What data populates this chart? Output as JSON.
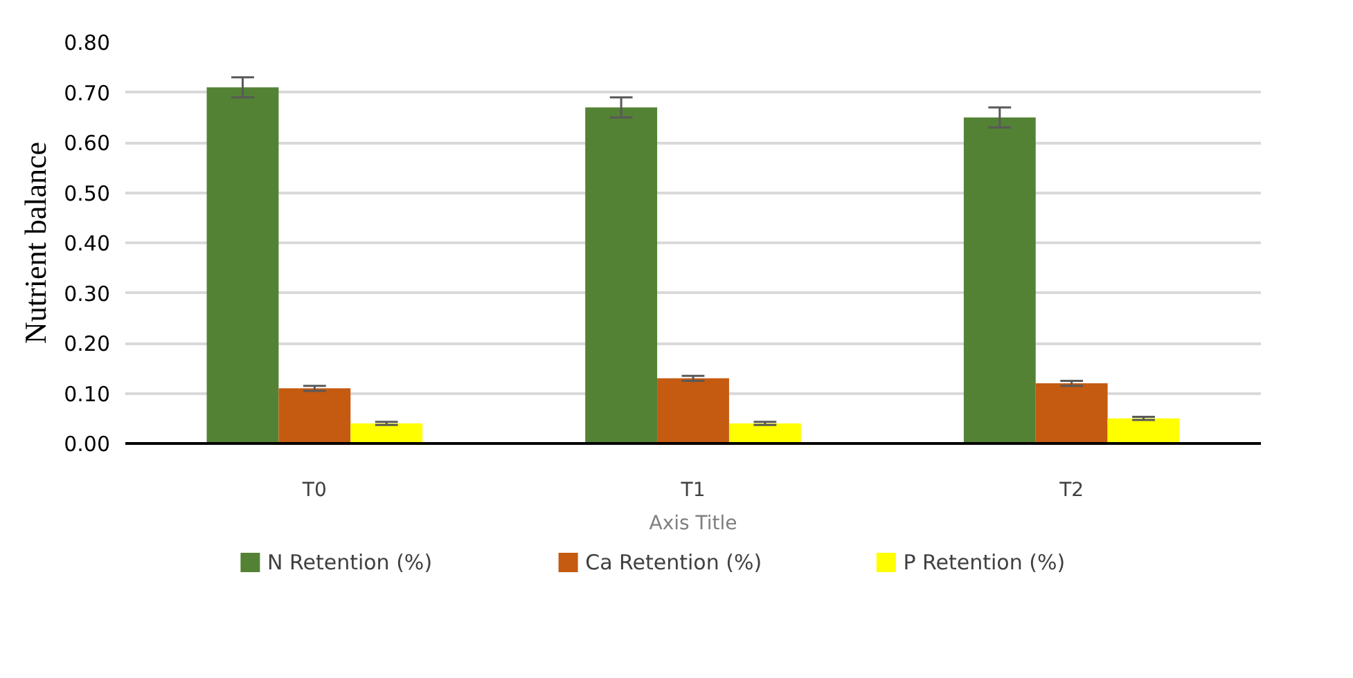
{
  "chart_data": {
    "type": "bar",
    "xlabel": "Axis Title",
    "ylabel": "Nutrient balance",
    "categories": [
      "T0",
      "T1",
      "T2"
    ],
    "series": [
      {
        "name": "N Retention (%)",
        "color": "#548235",
        "values": [
          0.71,
          0.67,
          0.65
        ],
        "errors": [
          0.02,
          0.02,
          0.02
        ]
      },
      {
        "name": "Ca Retention (%)",
        "color": "#c55a11",
        "values": [
          0.11,
          0.13,
          0.12
        ],
        "errors": [
          0.005,
          0.005,
          0.005
        ]
      },
      {
        "name": "P Retention (%)",
        "color": "#ffff00",
        "values": [
          0.04,
          0.04,
          0.05
        ],
        "errors": [
          0.003,
          0.003,
          0.003
        ]
      }
    ],
    "ylim": [
      0,
      0.8
    ],
    "yticks": [
      {
        "value": 0,
        "label": "0.00"
      },
      {
        "value": 0.1,
        "label": "0.10"
      },
      {
        "value": 0.2,
        "label": "0.20"
      },
      {
        "value": 0.3,
        "label": "0.30"
      },
      {
        "value": 0.4,
        "label": "0.40"
      },
      {
        "value": 0.5,
        "label": "0.50"
      },
      {
        "value": 0.6,
        "label": "0.60"
      },
      {
        "value": 0.7,
        "label": "0.70"
      },
      {
        "value": 0.8,
        "label": "0.80"
      }
    ],
    "grid": "y",
    "legend": "bottom"
  }
}
